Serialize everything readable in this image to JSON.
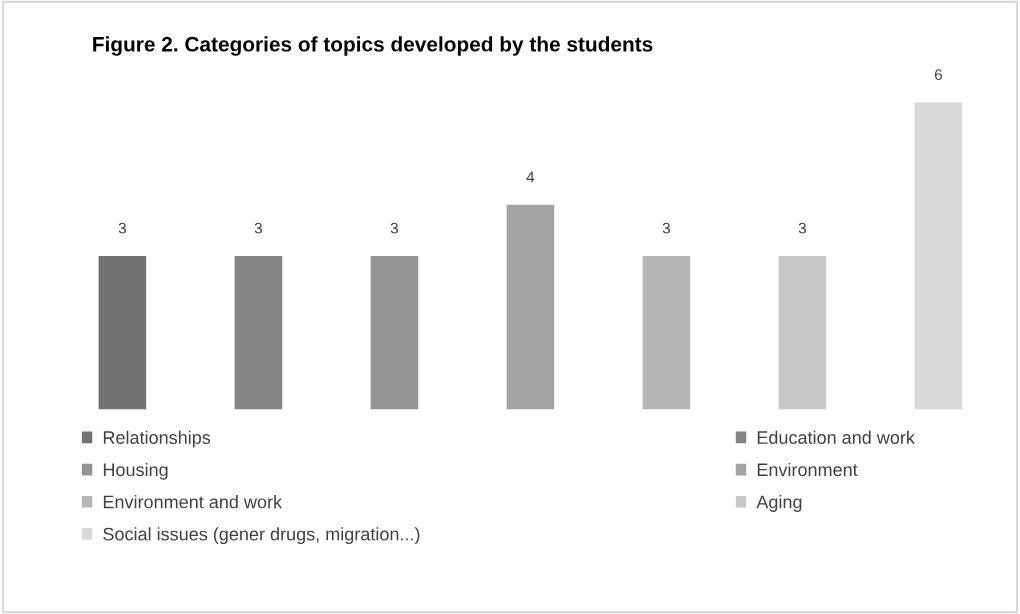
{
  "chart_data": {
    "type": "bar",
    "title": "Figure 2. Categories of topics developed by the students",
    "categories": [
      null,
      null,
      null,
      null,
      null,
      null,
      null
    ],
    "stacked": true,
    "series": [
      {
        "name": "Relationships",
        "color": "#727272",
        "values": [
          3,
          null,
          null,
          null,
          null,
          null,
          null
        ]
      },
      {
        "name": "Education and work",
        "color": "#848484",
        "values": [
          null,
          3,
          null,
          null,
          null,
          null,
          null
        ]
      },
      {
        "name": "Housing",
        "color": "#959595",
        "values": [
          null,
          null,
          3,
          null,
          null,
          null,
          null
        ]
      },
      {
        "name": "Environment",
        "color": "#a4a4a4",
        "values": [
          null,
          null,
          null,
          4,
          null,
          null,
          null
        ]
      },
      {
        "name": "Environment and work",
        "color": "#b6b6b6",
        "values": [
          null,
          null,
          null,
          null,
          3,
          null,
          null
        ]
      },
      {
        "name": "Aging",
        "color": "#c8c8c8",
        "values": [
          null,
          null,
          null,
          null,
          null,
          3,
          null
        ]
      },
      {
        "name": "Social issues (gener drugs, migration...)",
        "color": "#d9d9d9",
        "values": [
          null,
          null,
          null,
          null,
          null,
          null,
          6
        ]
      }
    ],
    "data_labels": true,
    "legend": "bottom",
    "tick_labels": false,
    "grid": false
  }
}
